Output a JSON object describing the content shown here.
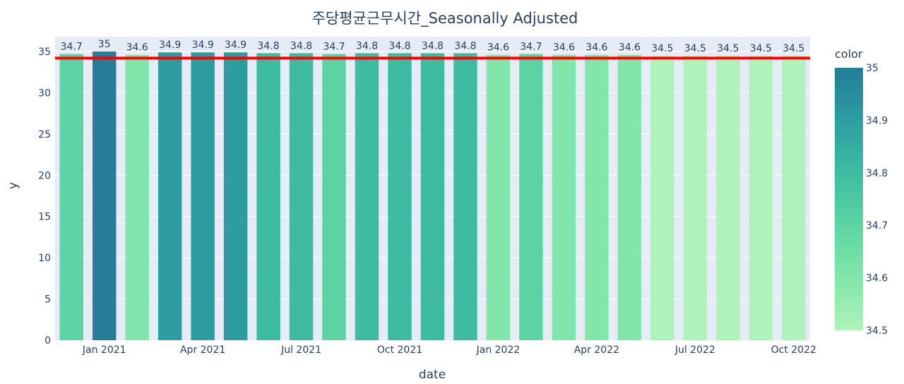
{
  "chart_data": {
    "type": "bar",
    "title": "주당평균근무시간_Seasonally Adjusted",
    "xlabel": "date",
    "ylabel": "y",
    "x": [
      "2020-12",
      "2021-01",
      "2021-02",
      "2021-03",
      "2021-04",
      "2021-05",
      "2021-06",
      "2021-07",
      "2021-08",
      "2021-09",
      "2021-10",
      "2021-11",
      "2021-12",
      "2022-01",
      "2022-02",
      "2022-03",
      "2022-04",
      "2022-05",
      "2022-06",
      "2022-07",
      "2022-08",
      "2022-09",
      "2022-10"
    ],
    "values": [
      34.7,
      35,
      34.6,
      34.9,
      34.9,
      34.9,
      34.8,
      34.8,
      34.7,
      34.8,
      34.8,
      34.8,
      34.8,
      34.6,
      34.7,
      34.6,
      34.6,
      34.6,
      34.5,
      34.5,
      34.5,
      34.5,
      34.5
    ],
    "data_labels": [
      "34.7",
      "35",
      "34.6",
      "34.9",
      "34.9",
      "34.9",
      "34.8",
      "34.8",
      "34.7",
      "34.8",
      "34.8",
      "34.8",
      "34.8",
      "34.6",
      "34.7",
      "34.6",
      "34.6",
      "34.6",
      "34.5",
      "34.5",
      "34.5",
      "34.5",
      "34.5"
    ],
    "ylim": [
      0,
      36.8
    ],
    "y_ticks": [
      0,
      5,
      10,
      15,
      20,
      25,
      30,
      35
    ],
    "x_ticks": [
      {
        "x": "2021-01",
        "label": "Jan 2021"
      },
      {
        "x": "2021-04",
        "label": "Apr 2021"
      },
      {
        "x": "2021-07",
        "label": "Jul 2021"
      },
      {
        "x": "2021-10",
        "label": "Oct 2021"
      },
      {
        "x": "2022-01",
        "label": "Jan 2022"
      },
      {
        "x": "2022-04",
        "label": "Apr 2022"
      },
      {
        "x": "2022-07",
        "label": "Jul 2022"
      },
      {
        "x": "2022-10",
        "label": "Oct 2022"
      }
    ],
    "reference_line": {
      "y": 34.2,
      "color": "#ff0000"
    },
    "grid": true,
    "colorbar": {
      "title": "color",
      "range": [
        34.5,
        35
      ],
      "ticks": [
        "35",
        "34.9",
        "34.8",
        "34.7",
        "34.6",
        "34.5"
      ],
      "colors": [
        "#b0f2bc",
        "#89e8ac",
        "#67dba5",
        "#4cc8a3",
        "#38b2a3",
        "#2c98a0",
        "#257d98"
      ]
    },
    "plot_bg": "#e5ecf6"
  }
}
